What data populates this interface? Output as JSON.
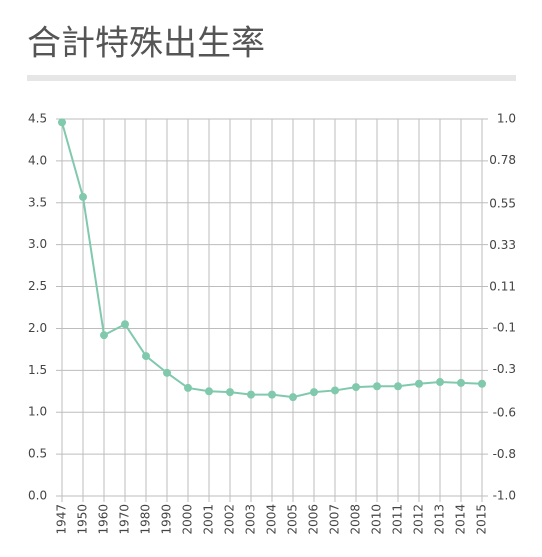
{
  "chart_data": {
    "type": "line",
    "title": "合計特殊出生率",
    "categories": [
      "1947",
      "1950",
      "1960",
      "1970",
      "1980",
      "1990",
      "2000",
      "2001",
      "2002",
      "2003",
      "2004",
      "2005",
      "2006",
      "2007",
      "2008",
      "2010",
      "2011",
      "2012",
      "2013",
      "2014",
      "2015"
    ],
    "values": [
      4.46,
      3.57,
      1.92,
      2.05,
      1.67,
      1.47,
      1.29,
      1.25,
      1.24,
      1.21,
      1.21,
      1.18,
      1.24,
      1.26,
      1.3,
      1.31,
      1.31,
      1.34,
      1.36,
      1.35,
      1.34
    ],
    "color": "#80c9ad",
    "ylim": [
      0,
      4.5
    ],
    "yticks": [
      {
        "value": 0,
        "label": "0.0"
      },
      0.5,
      {
        "value": 1,
        "label": "1.0"
      },
      1.5,
      {
        "value": 2,
        "label": "2.0"
      },
      2.5,
      {
        "value": 3,
        "label": "3.0"
      },
      3.5,
      {
        "value": 4,
        "label": "4.0"
      },
      4.5
    ],
    "y2lim": [
      -1,
      1
    ],
    "y2ticks": [
      {
        "value": -1,
        "label": "-1.0"
      },
      {
        "value": -0.78,
        "label": "-0.8"
      },
      {
        "value": -0.56,
        "label": "-0.6"
      },
      {
        "value": -0.33,
        "label": "-0.3"
      },
      {
        "value": -0.11,
        "label": "-0.1"
      },
      0.11,
      0.33,
      0.55,
      0.78,
      {
        "value": 1,
        "label": "1.0"
      }
    ],
    "grid": true
  }
}
